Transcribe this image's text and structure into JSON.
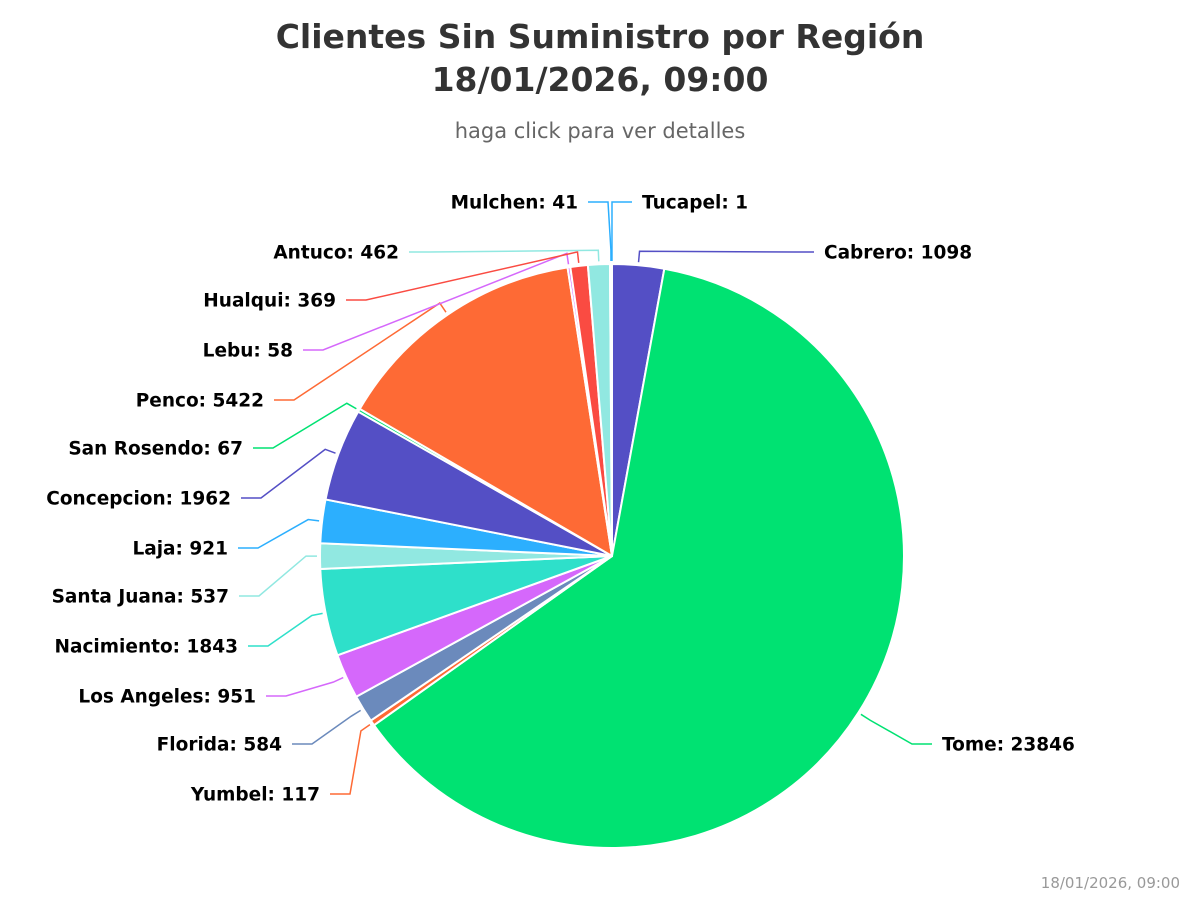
{
  "chart_data": {
    "type": "pie",
    "title": "Clientes Sin Suministro por Región",
    "title_line2": "18/01/2026, 09:00",
    "subtitle": "haga click para ver detalles",
    "credit": "18/01/2026, 09:00",
    "legend": "none",
    "slices": [
      {
        "name": "Cabrero",
        "value": 1098,
        "color": "#544fc5"
      },
      {
        "name": "Tome",
        "value": 23846,
        "color": "#00e272"
      },
      {
        "name": "Yumbel",
        "value": 117,
        "color": "#fe6a35"
      },
      {
        "name": "Florida",
        "value": 584,
        "color": "#6b8abc"
      },
      {
        "name": "Los Angeles",
        "value": 951,
        "color": "#d568fb"
      },
      {
        "name": "Nacimiento",
        "value": 1843,
        "color": "#2ee0ca"
      },
      {
        "name": "Santa Juana",
        "value": 537,
        "color": "#91e8e1"
      },
      {
        "name": "Laja",
        "value": 921,
        "color": "#2caffe"
      },
      {
        "name": "Concepcion",
        "value": 1962,
        "color": "#544fc5"
      },
      {
        "name": "San Rosendo",
        "value": 67,
        "color": "#00e272"
      },
      {
        "name": "Penco",
        "value": 5422,
        "color": "#fe6a35"
      },
      {
        "name": "Lebu",
        "value": 58,
        "color": "#d568fb"
      },
      {
        "name": "Hualqui",
        "value": 369,
        "color": "#fa4b42"
      },
      {
        "name": "Antuco",
        "value": 462,
        "color": "#91e8e1"
      },
      {
        "name": "Mulchen",
        "value": 41,
        "color": "#2caffe"
      },
      {
        "name": "Tucapel",
        "value": 1,
        "color": "#2caffe"
      }
    ]
  }
}
